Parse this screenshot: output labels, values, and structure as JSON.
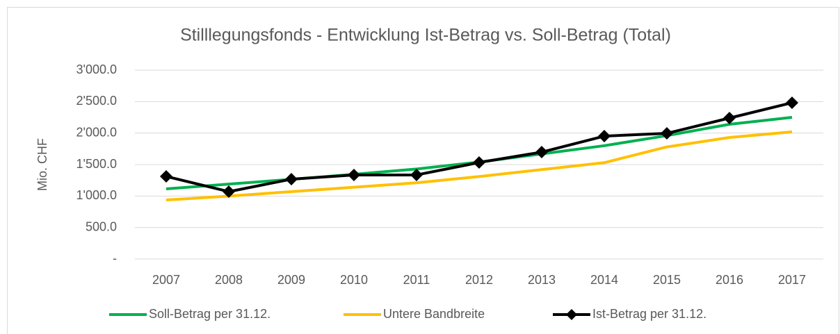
{
  "chart_data": {
    "type": "line",
    "title": "Stilllegungsfonds - Entwicklung Ist-Betrag vs. Soll-Betrag (Total)",
    "y_label": "Mio. CHF",
    "categories": [
      "2007",
      "2008",
      "2009",
      "2010",
      "2011",
      "2012",
      "2013",
      "2014",
      "2015",
      "2016",
      "2017"
    ],
    "series": [
      {
        "name": "Soll-Betrag per 31.12.",
        "color": "#00b050",
        "values": [
          1114,
          1190,
          1265,
          1345,
          1430,
          1540,
          1670,
          1800,
          1960,
          2140,
          2250
        ]
      },
      {
        "name": "Untere Bandbreite",
        "color": "#ffc000",
        "values": [
          937,
          1000,
          1070,
          1140,
          1210,
          1310,
          1420,
          1530,
          1780,
          1930,
          2020
        ]
      },
      {
        "name": "Ist-Betrag per 31.12.",
        "color": "#000000",
        "marker": "diamond",
        "values": [
          1312,
          1070,
          1268,
          1334,
          1335,
          1533,
          1698,
          1952,
          1996,
          2239,
          2482
        ]
      }
    ],
    "ylim": [
      0,
      3000
    ],
    "yticks": [
      {
        "value": 0,
        "label": "-"
      },
      {
        "value": 500,
        "label": "500.0"
      },
      {
        "value": 1000,
        "label": "1'000.0"
      },
      {
        "value": 1500,
        "label": "1'500.0"
      },
      {
        "value": 2000,
        "label": "2'000.0"
      },
      {
        "value": 2500,
        "label": "2'500.0"
      },
      {
        "value": 3000,
        "label": "3'000.0"
      }
    ],
    "grid": true,
    "legend": "bottom"
  }
}
